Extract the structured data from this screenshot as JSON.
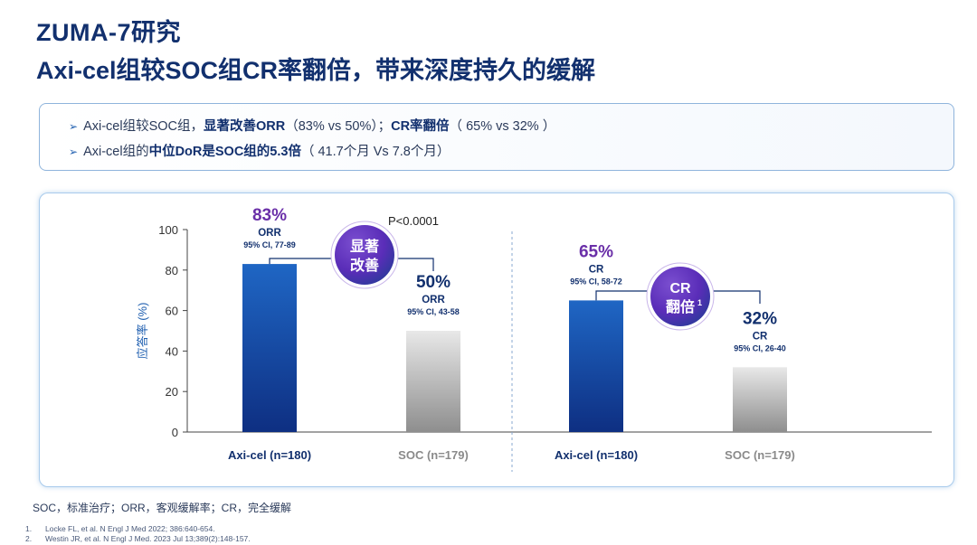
{
  "header": {
    "title_line1": "ZUMA-7研究",
    "title_line2": "Axi-cel组较SOC组CR率翻倍，带来深度持久的缓解"
  },
  "key_points": [
    {
      "arrow": "➢",
      "p1": "Axi-cel组较SOC组，",
      "b1": "显著改善ORR",
      "p2": "（83% vs 50%）；",
      "b2": "CR率翻倍",
      "p3": "（ 65% vs 32% ）"
    },
    {
      "arrow": "➢",
      "p1": "Axi-cel组的",
      "b1": "中位DoR是SOC组的5.3倍",
      "p2": "（ 41.7个月 Vs 7.8个月）"
    }
  ],
  "chart_data": {
    "type": "bar",
    "ylabel": "应答率 (%)",
    "ylim": [
      0,
      100
    ],
    "yticks": [
      0,
      20,
      40,
      60,
      80,
      100
    ],
    "grid": false,
    "panels": [
      {
        "metric": "ORR",
        "categories": [
          "Axi-cel (n=180)",
          "SOC (n=179)"
        ],
        "values": [
          83,
          50
        ],
        "value_labels": [
          "83%",
          "50%"
        ],
        "ci_labels": [
          "95% CI, 77-89",
          "95% CI, 43-58"
        ],
        "p_value": "P<0.0001",
        "badge_line1": "显著",
        "badge_line2": "改善",
        "badge_sup": ""
      },
      {
        "metric": "CR",
        "categories": [
          "Axi-cel (n=180)",
          "SOC (n=179)"
        ],
        "values": [
          65,
          32
        ],
        "value_labels": [
          "65%",
          "32%"
        ],
        "ci_labels": [
          "95% CI, 58-72",
          "95% CI, 26-40"
        ],
        "p_value": "",
        "badge_line1": "CR",
        "badge_line2": "翻倍",
        "badge_sup": "1"
      }
    ]
  },
  "colors": {
    "axi_top": "#1f66c4",
    "axi_bottom": "#0e2f82",
    "soc_top": "#e8e8e8",
    "soc_bottom": "#8e8e8e",
    "value_label": "#6a2fa8",
    "title": "#12306e"
  },
  "footnotes": {
    "abbreviations": "SOC，标准治疗；ORR，客观缓解率；CR，完全缓解",
    "refs": [
      {
        "num": "1.",
        "text": "Locke FL, et al. N Engl J Med 2022; 386:640-654."
      },
      {
        "num": "2.",
        "text": "Westin JR, et al. N Engl J Med. 2023 Jul 13;389(2):148-157."
      }
    ]
  }
}
